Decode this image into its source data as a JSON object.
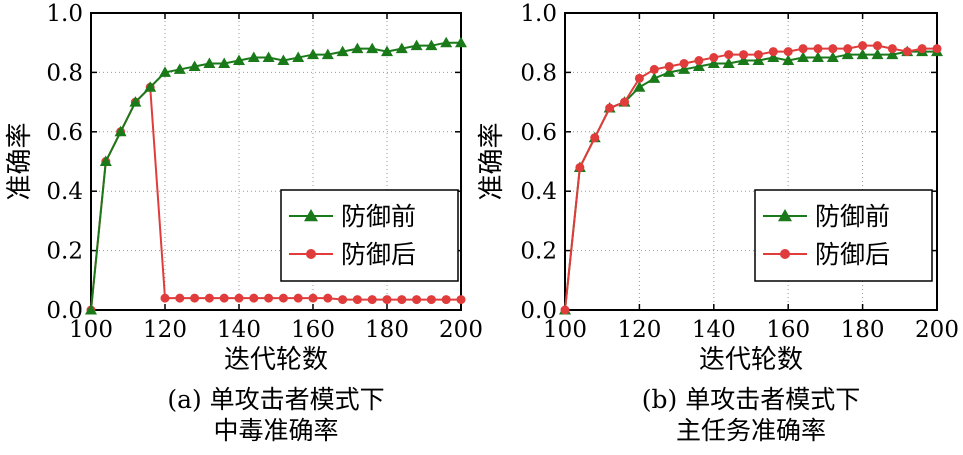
{
  "chart_data": [
    {
      "type": "line",
      "panel": "(a)",
      "caption_line1": "(a) 单攻击者模式下",
      "caption_line2": "中毒准确率",
      "xlabel": "迭代轮数",
      "ylabel": "准确率",
      "xlim": [
        100,
        200
      ],
      "ylim": [
        0.0,
        1.0
      ],
      "xticks": [
        "100",
        "120",
        "140",
        "160",
        "180",
        "200"
      ],
      "yticks": [
        "0.0",
        "0.2",
        "0.4",
        "0.6",
        "0.8",
        "1.0"
      ],
      "grid": true,
      "legend_position": "lower-right",
      "series": [
        {
          "name": "防御前",
          "color": "#1a7a1a",
          "marker": "triangle",
          "points": [
            [
              100,
              0.0
            ],
            [
              104,
              0.5
            ],
            [
              108,
              0.6
            ],
            [
              112,
              0.7
            ],
            [
              116,
              0.75
            ],
            [
              120,
              0.8
            ],
            [
              124,
              0.81
            ],
            [
              128,
              0.82
            ],
            [
              132,
              0.83
            ],
            [
              136,
              0.83
            ],
            [
              140,
              0.84
            ],
            [
              144,
              0.85
            ],
            [
              148,
              0.85
            ],
            [
              152,
              0.84
            ],
            [
              156,
              0.85
            ],
            [
              160,
              0.86
            ],
            [
              164,
              0.86
            ],
            [
              168,
              0.87
            ],
            [
              172,
              0.88
            ],
            [
              176,
              0.88
            ],
            [
              180,
              0.87
            ],
            [
              184,
              0.88
            ],
            [
              188,
              0.89
            ],
            [
              192,
              0.89
            ],
            [
              196,
              0.9
            ],
            [
              200,
              0.9
            ]
          ]
        },
        {
          "name": "防御后",
          "color": "#e03c3c",
          "marker": "circle",
          "points": [
            [
              100,
              0.0
            ],
            [
              104,
              0.5
            ],
            [
              108,
              0.6
            ],
            [
              112,
              0.7
            ],
            [
              116,
              0.75
            ],
            [
              120,
              0.04
            ],
            [
              124,
              0.04
            ],
            [
              128,
              0.04
            ],
            [
              132,
              0.04
            ],
            [
              136,
              0.04
            ],
            [
              140,
              0.04
            ],
            [
              144,
              0.04
            ],
            [
              148,
              0.04
            ],
            [
              152,
              0.04
            ],
            [
              156,
              0.04
            ],
            [
              160,
              0.04
            ],
            [
              164,
              0.04
            ],
            [
              168,
              0.035
            ],
            [
              172,
              0.035
            ],
            [
              176,
              0.035
            ],
            [
              180,
              0.035
            ],
            [
              184,
              0.035
            ],
            [
              188,
              0.035
            ],
            [
              192,
              0.035
            ],
            [
              196,
              0.035
            ],
            [
              200,
              0.035
            ]
          ]
        }
      ]
    },
    {
      "type": "line",
      "panel": "(b)",
      "caption_line1": "(b) 单攻击者模式下",
      "caption_line2": "主任务准确率",
      "xlabel": "迭代轮数",
      "ylabel": "准确率",
      "xlim": [
        100,
        200
      ],
      "ylim": [
        0.0,
        1.0
      ],
      "xticks": [
        "100",
        "120",
        "140",
        "160",
        "180",
        "200"
      ],
      "yticks": [
        "0.0",
        "0.2",
        "0.4",
        "0.6",
        "0.8",
        "1.0"
      ],
      "grid": true,
      "legend_position": "lower-right",
      "series": [
        {
          "name": "防御前",
          "color": "#1a7a1a",
          "marker": "triangle",
          "points": [
            [
              100,
              0.0
            ],
            [
              104,
              0.48
            ],
            [
              108,
              0.58
            ],
            [
              112,
              0.68
            ],
            [
              116,
              0.7
            ],
            [
              120,
              0.75
            ],
            [
              124,
              0.78
            ],
            [
              128,
              0.8
            ],
            [
              132,
              0.81
            ],
            [
              136,
              0.82
            ],
            [
              140,
              0.83
            ],
            [
              144,
              0.83
            ],
            [
              148,
              0.84
            ],
            [
              152,
              0.84
            ],
            [
              156,
              0.85
            ],
            [
              160,
              0.84
            ],
            [
              164,
              0.85
            ],
            [
              168,
              0.85
            ],
            [
              172,
              0.85
            ],
            [
              176,
              0.86
            ],
            [
              180,
              0.86
            ],
            [
              184,
              0.86
            ],
            [
              188,
              0.86
            ],
            [
              192,
              0.87
            ],
            [
              196,
              0.87
            ],
            [
              200,
              0.87
            ]
          ]
        },
        {
          "name": "防御后",
          "color": "#e03c3c",
          "marker": "circle",
          "points": [
            [
              100,
              0.0
            ],
            [
              104,
              0.48
            ],
            [
              108,
              0.58
            ],
            [
              112,
              0.68
            ],
            [
              116,
              0.7
            ],
            [
              120,
              0.78
            ],
            [
              124,
              0.81
            ],
            [
              128,
              0.82
            ],
            [
              132,
              0.83
            ],
            [
              136,
              0.84
            ],
            [
              140,
              0.85
            ],
            [
              144,
              0.86
            ],
            [
              148,
              0.86
            ],
            [
              152,
              0.86
            ],
            [
              156,
              0.87
            ],
            [
              160,
              0.87
            ],
            [
              164,
              0.88
            ],
            [
              168,
              0.88
            ],
            [
              172,
              0.88
            ],
            [
              176,
              0.88
            ],
            [
              180,
              0.89
            ],
            [
              184,
              0.89
            ],
            [
              188,
              0.88
            ],
            [
              192,
              0.87
            ],
            [
              196,
              0.88
            ],
            [
              200,
              0.88
            ]
          ]
        }
      ]
    }
  ]
}
